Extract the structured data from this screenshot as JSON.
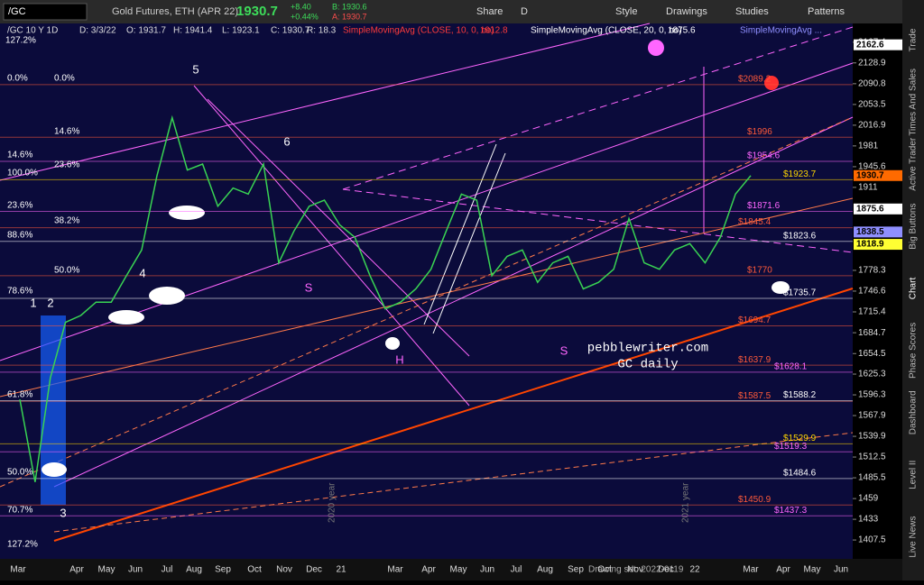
{
  "toolbar": {
    "symbol": "/GC",
    "description": "Gold Futures, ETH (APR 22)",
    "last": 1930.7,
    "change": "+8.40",
    "change_pct": "+0.44%",
    "bid": "B: 1930.6",
    "ask": "A: 1930.7",
    "buttons": [
      "Share",
      "D",
      "Style",
      "Drawings",
      "Studies",
      "Patterns"
    ]
  },
  "legend": [
    "/GC 10 Y 1D",
    "D: 3/3/22",
    "O: 1931.7",
    "H: 1941.4",
    "L: 1923.1",
    "C: 1930.7",
    "R: 18.3"
  ],
  "studies": [
    {
      "name": "SimpleMovingAvg (CLOSE, 10, 0, no)",
      "value": 1912.8,
      "color": "#ff3b3b"
    },
    {
      "name": "SimpleMovingAvg (CLOSE, 20, 0, no)",
      "value": 1875.6,
      "color": "#ffffff"
    },
    {
      "name": "SimpleMovingAvg ...",
      "color": "#8f8fff"
    }
  ],
  "chart": {
    "log": true,
    "ylim": [
      1389,
      2203
    ],
    "yticks": [
      2167.4,
      2128.9,
      2090.8,
      2053.5,
      2016.9,
      1981,
      1945.6,
      1911,
      1778.3,
      1746.6,
      1715.4,
      1684.7,
      1654.5,
      1625.3,
      1596.3,
      1567.9,
      1539.9,
      1512.5,
      1485.5,
      1459,
      1433,
      1407.5
    ],
    "closes": [
      1590,
      1480,
      1620,
      1700,
      1710,
      1730,
      1730,
      1770,
      1810,
      1930,
      2030,
      1940,
      1950,
      1880,
      1910,
      1900,
      1950,
      1790,
      1840,
      1880,
      1890,
      1850,
      1830,
      1770,
      1720,
      1730,
      1750,
      1780,
      1840,
      1900,
      1890,
      1770,
      1800,
      1810,
      1760,
      1790,
      1800,
      1750,
      1760,
      1780,
      1860,
      1790,
      1780,
      1810,
      1820,
      1790,
      1830,
      1900,
      1930.7
    ],
    "close_color": "#39d353",
    "x_labels": [
      "Mar",
      "Apr",
      "May",
      "Jun",
      "Jul",
      "Aug",
      "Sep",
      "Oct",
      "Nov",
      "Dec",
      "21",
      "Mar",
      "Apr",
      "May",
      "Jun",
      "Jul",
      "Aug",
      "Sep",
      "Oct",
      "Nov",
      "Dec",
      "22",
      "Mar",
      "Apr",
      "May",
      "Jun"
    ],
    "price_boxes": [
      {
        "value": 2162.6,
        "color": "#ffffff"
      },
      {
        "value": 1930.7,
        "color": "#ff6a00"
      },
      {
        "value": 1875.6,
        "color": "#ffffff"
      },
      {
        "value": 1838.5,
        "color": "#8f8fff"
      },
      {
        "value": 1818.9,
        "color": "#ffff33"
      }
    ],
    "levels": [
      {
        "value": 2089.2,
        "label": "$2089.2",
        "color": "#ff5a3a"
      },
      {
        "value": 1996,
        "label": "$1996",
        "color": "#ff5a3a"
      },
      {
        "value": 1954.6,
        "label": "$1954.6",
        "color": "#ff66ff"
      },
      {
        "value": 1923.7,
        "label": "$1923.7",
        "color": "#ffd700"
      },
      {
        "value": 1871.6,
        "label": "$1871.6",
        "color": "#ff66ff"
      },
      {
        "value": 1845.4,
        "label": "$1845.4",
        "color": "#ff5a3a"
      },
      {
        "value": 1823.6,
        "label": "$1823.6",
        "color": "#ffffff"
      },
      {
        "value": 1770,
        "label": "$1770",
        "color": "#ff5a3a"
      },
      {
        "value": 1735.7,
        "label": "$1735.7",
        "color": "#ffffff"
      },
      {
        "value": 1694.7,
        "label": "$1694.7",
        "color": "#ff5a3a"
      },
      {
        "value": 1637.9,
        "label": "$1637.9",
        "color": "#ff5a3a"
      },
      {
        "value": 1628.1,
        "label": "$1628.1",
        "color": "#ff66ff"
      },
      {
        "value": 1587.5,
        "label": "$1587.5",
        "color": "#ff5a3a"
      },
      {
        "value": 1588.2,
        "label": "$1588.2",
        "color": "#ffffff"
      },
      {
        "value": 1529.9,
        "label": "$1529.9",
        "color": "#ffd700"
      },
      {
        "value": 1519.3,
        "label": "$1519.3",
        "color": "#ff66ff"
      },
      {
        "value": 1484.6,
        "label": "$1484.6",
        "color": "#ffffff"
      },
      {
        "value": 1450.9,
        "label": "$1450.9",
        "color": "#ff5a3a"
      },
      {
        "value": 1437.3,
        "label": "$1437.3",
        "color": "#ff66ff"
      }
    ],
    "fib_labels": [
      "127.2%",
      "0.0%",
      "0.0%",
      "14.6%",
      "14.6%",
      "23.6%",
      "100.0%",
      "23.6%",
      "38.2%",
      "88.6%",
      "50.0%",
      "78.6%",
      "61.8%",
      "50.0%",
      "70.7%",
      "127.2%"
    ],
    "annotations": [
      "5",
      "6",
      "4",
      "1",
      "2",
      "3",
      "S",
      "H",
      "S"
    ],
    "watermark": [
      "pebblewriter.com",
      "GC daily"
    ],
    "year_marks": [
      "2020 year",
      "2021 year"
    ]
  },
  "side_tabs": [
    "Trade",
    "Times And Sales",
    "Active Trader",
    "Big Buttons",
    "Chart",
    "Phase Scores",
    "Dashboard",
    "Level II",
    "Live News"
  ],
  "status": "Drawing set: 2022-0119"
}
